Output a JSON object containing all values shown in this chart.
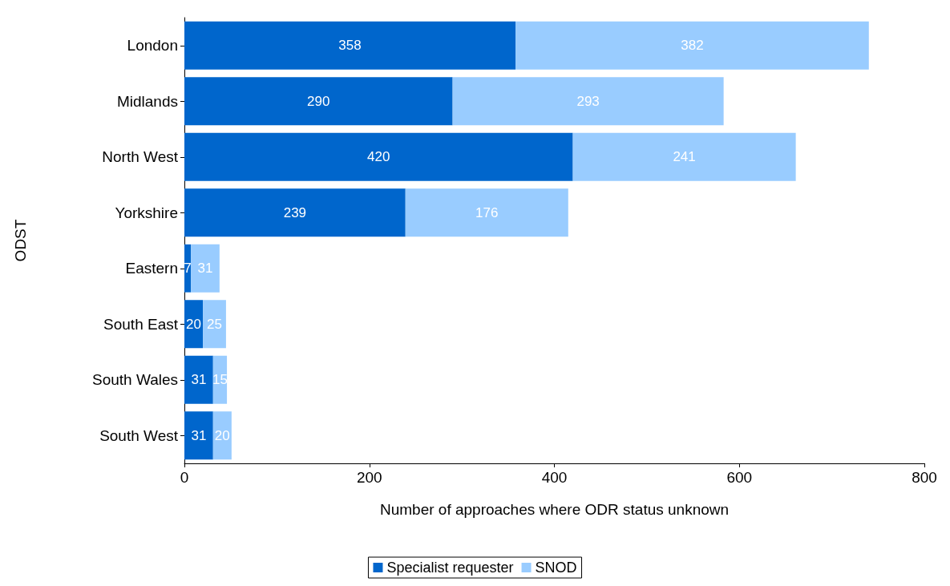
{
  "chart_data": {
    "type": "bar",
    "orientation": "horizontal",
    "stacked": true,
    "xlabel": "Number of approaches where ODR status unknown",
    "ylabel": "ODST",
    "categories": [
      "London",
      "Midlands",
      "North West",
      "Yorkshire",
      "Eastern",
      "South East",
      "South Wales",
      "South West"
    ],
    "series": [
      {
        "name": "Specialist requester",
        "color": "#0066cc",
        "values": [
          358,
          290,
          420,
          239,
          7,
          20,
          31,
          31
        ]
      },
      {
        "name": "SNOD",
        "color": "#99ccff",
        "values": [
          382,
          293,
          241,
          176,
          31,
          25,
          15,
          20
        ]
      }
    ],
    "xlim": [
      0,
      800
    ],
    "xticks": [
      0,
      200,
      400,
      600,
      800
    ],
    "grid": false,
    "legend": "bottom",
    "data_labels": true
  }
}
